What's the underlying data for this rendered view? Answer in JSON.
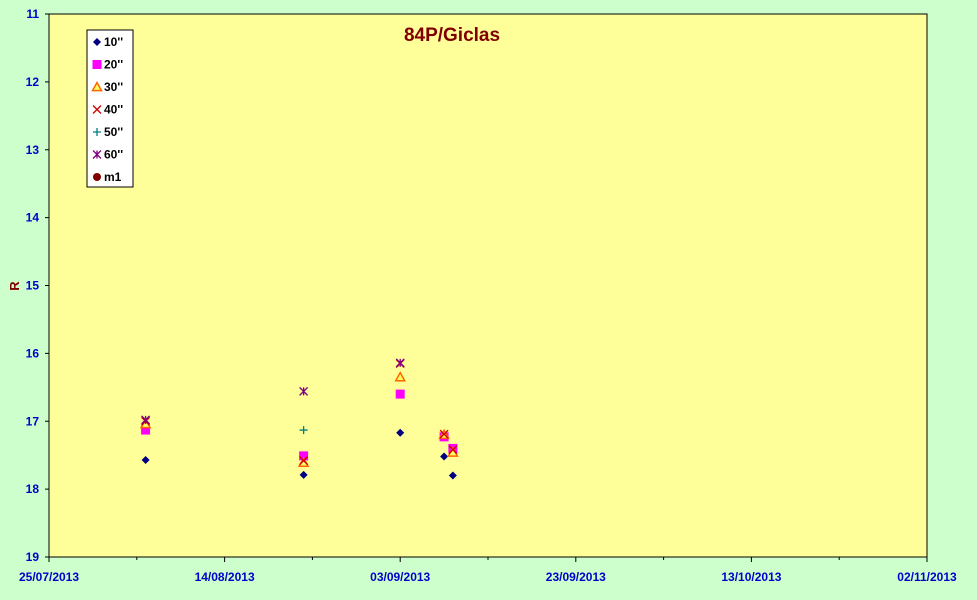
{
  "chart_data": {
    "type": "scatter",
    "title": "84P/Giclas",
    "xlabel": "",
    "ylabel": "R",
    "x_type": "date",
    "xlim": [
      "2013-07-25",
      "2013-11-02"
    ],
    "x_ticks": [
      "2013-07-25",
      "2013-08-14",
      "2013-09-03",
      "2013-09-23",
      "2013-10-13",
      "2013-11-02"
    ],
    "x_tick_labels": [
      "25/07/2013",
      "14/08/2013",
      "03/09/2013",
      "23/09/2013",
      "13/10/2013",
      "02/11/2013"
    ],
    "ylim": [
      11,
      19
    ],
    "y_inverted": true,
    "y_ticks": [
      11,
      12,
      13,
      14,
      15,
      16,
      17,
      18,
      19
    ],
    "y_tick_labels": [
      "11",
      "12",
      "13",
      "14",
      "15",
      "16",
      "17",
      "18",
      "19"
    ],
    "grid": false,
    "legend_position": "top-left",
    "colors": {
      "background": "#ccffcc",
      "plot_area": "#ffff99",
      "title": "#800000",
      "axis_title": "#800000",
      "tick_labels": "#0000cc"
    },
    "series": [
      {
        "name": "10''",
        "marker": "diamond",
        "color": "#000080",
        "points": [
          {
            "x": "2013-08-05",
            "y": 17.57
          },
          {
            "x": "2013-08-23",
            "y": 17.79
          },
          {
            "x": "2013-09-03",
            "y": 17.17
          },
          {
            "x": "2013-09-08",
            "y": 17.52
          },
          {
            "x": "2013-09-09",
            "y": 17.8
          }
        ]
      },
      {
        "name": "20''",
        "marker": "square",
        "color": "#ff00ff",
        "points": [
          {
            "x": "2013-08-05",
            "y": 17.13
          },
          {
            "x": "2013-08-23",
            "y": 17.51
          },
          {
            "x": "2013-09-03",
            "y": 16.6
          },
          {
            "x": "2013-09-08",
            "y": 17.23
          },
          {
            "x": "2013-09-09",
            "y": 17.4
          }
        ]
      },
      {
        "name": "30''",
        "marker": "triangle",
        "color": "#ff6600",
        "points": [
          {
            "x": "2013-08-05",
            "y": 17.04
          },
          {
            "x": "2013-08-23",
            "y": 17.61
          },
          {
            "x": "2013-09-03",
            "y": 16.35
          },
          {
            "x": "2013-09-08",
            "y": 17.2
          },
          {
            "x": "2013-09-09",
            "y": 17.46
          }
        ]
      },
      {
        "name": "40''",
        "marker": "x",
        "color": "#cc0000",
        "points": [
          {
            "x": "2013-08-05",
            "y": 17.0
          },
          {
            "x": "2013-08-23",
            "y": 17.58
          },
          {
            "x": "2013-09-03",
            "y": 16.15
          },
          {
            "x": "2013-09-08",
            "y": 17.19
          },
          {
            "x": "2013-09-09",
            "y": 17.42
          }
        ]
      },
      {
        "name": "50''",
        "marker": "plus",
        "color": "#008080",
        "points": [
          {
            "x": "2013-08-23",
            "y": 17.13
          }
        ]
      },
      {
        "name": "60''",
        "marker": "asterisk",
        "color": "#800080",
        "points": [
          {
            "x": "2013-08-05",
            "y": 16.98
          },
          {
            "x": "2013-08-23",
            "y": 16.56
          },
          {
            "x": "2013-09-03",
            "y": 16.14
          }
        ]
      },
      {
        "name": "m1",
        "marker": "circle",
        "color": "#800000",
        "points": []
      }
    ]
  }
}
